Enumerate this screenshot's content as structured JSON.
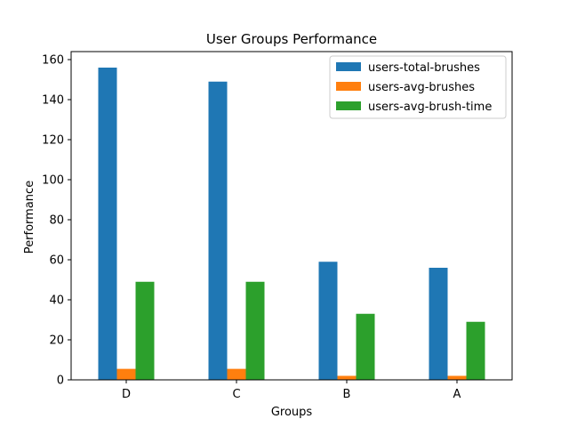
{
  "chart_data": {
    "type": "bar",
    "title": "User Groups Performance",
    "xlabel": "Groups",
    "ylabel": "Performance",
    "categories": [
      "D",
      "C",
      "B",
      "A"
    ],
    "series": [
      {
        "name": "users-total-brushes",
        "color": "#1f77b4",
        "values": [
          156,
          149,
          59,
          56
        ]
      },
      {
        "name": "users-avg-brushes",
        "color": "#ff7f0e",
        "values": [
          5.5,
          5.5,
          2,
          2
        ]
      },
      {
        "name": "users-avg-brush-time",
        "color": "#2ca02c",
        "values": [
          49,
          49,
          33,
          29
        ]
      }
    ],
    "ylim": [
      0,
      164
    ],
    "yticks": [
      0,
      20,
      40,
      60,
      80,
      100,
      120,
      140,
      160
    ],
    "grid": false,
    "legend_position": "upper-right"
  }
}
